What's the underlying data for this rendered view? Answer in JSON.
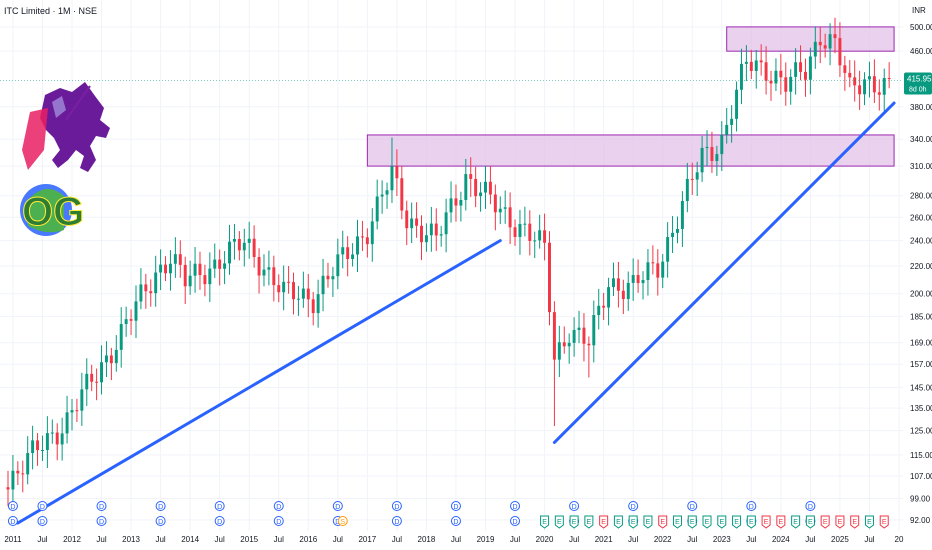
{
  "header": {
    "symbol_title": "ITC Limited · 1M · NSE"
  },
  "currency_label": "INR",
  "price_badge": {
    "value": "415.95",
    "countdown": "8d 0h",
    "color": "#089981"
  },
  "colors": {
    "up": "#089981",
    "down": "#f23645",
    "trendline": "#2962ff",
    "zone_fill": "#e1bee7",
    "zone_border": "#9c27b0",
    "dividend": "#2962ff",
    "split": "#ff9800",
    "earnings_up": "#089981",
    "earnings_down": "#f23645"
  },
  "logo": {
    "text": "OG",
    "icon": "knight-on-horse-logo"
  },
  "chart_data": {
    "type": "candlestick",
    "scale": "log",
    "ylim": [
      91,
      505
    ],
    "yticks": [
      "92.00",
      "99.00",
      "107.00",
      "115.00",
      "125.00",
      "135.00",
      "145.00",
      "157.00",
      "169.00",
      "185.00",
      "200.00",
      "220.00",
      "240.00",
      "260.00",
      "280.00",
      "310.00",
      "340.00",
      "380.00",
      "460.00",
      "500.00"
    ],
    "xlim": [
      "2010-12",
      "2026-01"
    ],
    "xticks": [
      {
        "date": "2011-01",
        "label": "2011"
      },
      {
        "date": "2011-07",
        "label": "Jul"
      },
      {
        "date": "2012-01",
        "label": "2012"
      },
      {
        "date": "2012-07",
        "label": "Jul"
      },
      {
        "date": "2013-01",
        "label": "2013"
      },
      {
        "date": "2013-07",
        "label": "Jul"
      },
      {
        "date": "2014-01",
        "label": "2014"
      },
      {
        "date": "2014-07",
        "label": "Jul"
      },
      {
        "date": "2015-01",
        "label": "2015"
      },
      {
        "date": "2015-07",
        "label": "Jul"
      },
      {
        "date": "2016-01",
        "label": "2016"
      },
      {
        "date": "2016-07",
        "label": "Jul"
      },
      {
        "date": "2017-01",
        "label": "2017"
      },
      {
        "date": "2017-07",
        "label": "Jul"
      },
      {
        "date": "2018-01",
        "label": "2018"
      },
      {
        "date": "2018-07",
        "label": "Jul"
      },
      {
        "date": "2019-01",
        "label": "2019"
      },
      {
        "date": "2019-07",
        "label": "Jul"
      },
      {
        "date": "2020-01",
        "label": "2020"
      },
      {
        "date": "2020-07",
        "label": "Jul"
      },
      {
        "date": "2021-01",
        "label": "2021"
      },
      {
        "date": "2021-07",
        "label": "Jul"
      },
      {
        "date": "2022-01",
        "label": "2022"
      },
      {
        "date": "2022-07",
        "label": "Jul"
      },
      {
        "date": "2023-01",
        "label": "2023"
      },
      {
        "date": "2023-07",
        "label": "Jul"
      },
      {
        "date": "2024-01",
        "label": "2024"
      },
      {
        "date": "2024-07",
        "label": "Jul"
      },
      {
        "date": "2025-01",
        "label": "2025"
      },
      {
        "date": "2025-07",
        "label": "Jul"
      },
      {
        "date": "2026-01",
        "label": "20"
      }
    ],
    "close_path": [
      [
        "2010-12",
        105
      ],
      [
        "2011-06",
        117
      ],
      [
        "2011-12",
        130
      ],
      [
        "2012-06",
        152
      ],
      [
        "2012-12",
        180
      ],
      [
        "2013-06",
        215
      ],
      [
        "2013-09",
        228
      ],
      [
        "2013-12",
        208
      ],
      [
        "2014-06",
        222
      ],
      [
        "2014-12",
        238
      ],
      [
        "2015-03",
        225
      ],
      [
        "2015-08",
        200
      ],
      [
        "2016-02",
        198
      ],
      [
        "2016-08",
        225
      ],
      [
        "2017-01",
        250
      ],
      [
        "2017-06",
        300
      ],
      [
        "2017-09",
        260
      ],
      [
        "2018-03",
        240
      ],
      [
        "2018-09",
        300
      ],
      [
        "2019-04",
        265
      ],
      [
        "2019-09",
        250
      ],
      [
        "2020-01",
        232
      ],
      [
        "2020-03",
        160
      ],
      [
        "2020-06",
        178
      ],
      [
        "2020-10",
        168
      ],
      [
        "2021-02",
        208
      ],
      [
        "2021-07",
        205
      ],
      [
        "2021-12",
        220
      ],
      [
        "2022-03",
        250
      ],
      [
        "2022-09",
        320
      ],
      [
        "2023-01",
        340
      ],
      [
        "2023-06",
        440
      ],
      [
        "2023-10",
        435
      ],
      [
        "2024-02",
        410
      ],
      [
        "2024-06",
        430
      ],
      [
        "2024-09",
        490
      ],
      [
        "2024-12",
        470
      ],
      [
        "2025-03",
        400
      ],
      [
        "2025-06",
        420
      ],
      [
        "2025-11",
        405
      ]
    ],
    "highs_lows": [
      {
        "date": "2017-06",
        "high": 342
      },
      {
        "date": "2020-03",
        "low": 127
      },
      {
        "date": "2020-10",
        "low": 150
      },
      {
        "date": "2024-09",
        "high": 499
      }
    ],
    "last_close": 415.95,
    "zones": [
      {
        "from": "2017-01",
        "to": "2025-12",
        "low": 310,
        "high": 345
      },
      {
        "from": "2023-02",
        "to": "2025-12",
        "low": 460,
        "high": 500
      }
    ],
    "trendlines": [
      {
        "from": [
          "2011-02",
          91
        ],
        "to": [
          "2019-04",
          240
        ]
      },
      {
        "from": [
          "2020-03",
          120
        ],
        "to": [
          "2025-12",
          385
        ]
      }
    ],
    "events": {
      "dividends": [
        "2011-01",
        "2011-07",
        "2012-07",
        "2013-07",
        "2014-07",
        "2015-07",
        "2016-07",
        "2017-07",
        "2018-07",
        "2019-07",
        "2020-07",
        "2021-07",
        "2022-07",
        "2023-07",
        "2024-07"
      ],
      "splits": [
        "2016-08"
      ],
      "earnings": [
        {
          "date": "2020-01",
          "sign": "up"
        },
        {
          "date": "2020-04",
          "sign": "up"
        },
        {
          "date": "2020-07",
          "sign": "up"
        },
        {
          "date": "2020-10",
          "sign": "up"
        },
        {
          "date": "2021-01",
          "sign": "down"
        },
        {
          "date": "2021-04",
          "sign": "up"
        },
        {
          "date": "2021-07",
          "sign": "up"
        },
        {
          "date": "2021-10",
          "sign": "up"
        },
        {
          "date": "2022-01",
          "sign": "down"
        },
        {
          "date": "2022-04",
          "sign": "up"
        },
        {
          "date": "2022-07",
          "sign": "up"
        },
        {
          "date": "2022-10",
          "sign": "up"
        },
        {
          "date": "2023-01",
          "sign": "up"
        },
        {
          "date": "2023-04",
          "sign": "up"
        },
        {
          "date": "2023-07",
          "sign": "up"
        },
        {
          "date": "2023-10",
          "sign": "down"
        },
        {
          "date": "2024-01",
          "sign": "down"
        },
        {
          "date": "2024-04",
          "sign": "up"
        },
        {
          "date": "2024-07",
          "sign": "up"
        },
        {
          "date": "2024-10",
          "sign": "down"
        },
        {
          "date": "2025-01",
          "sign": "down"
        },
        {
          "date": "2025-04",
          "sign": "down"
        },
        {
          "date": "2025-07",
          "sign": "up"
        },
        {
          "date": "2025-10",
          "sign": "down"
        }
      ]
    }
  }
}
